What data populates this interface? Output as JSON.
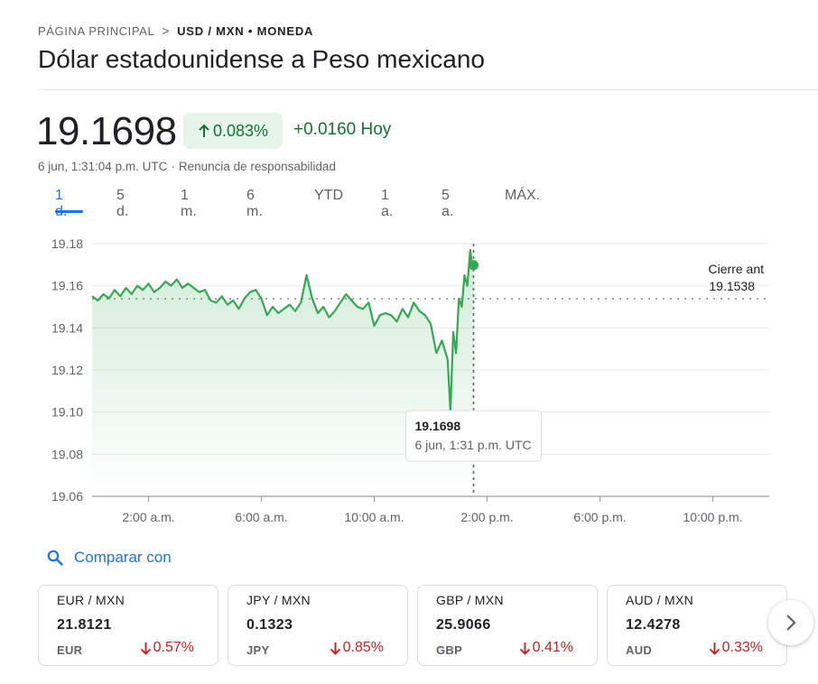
{
  "breadcrumb": {
    "home": "PÁGINA PRINCIPAL",
    "separator": ">",
    "current": "USD / MXN • MONEDA"
  },
  "title": "Dólar estadounidense a Peso mexicano",
  "quote": {
    "price": "19.1698",
    "change_pct": "0.083%",
    "change_abs": "+0.0160 Hoy",
    "timestamp": "6 jun, 1:31:04 p.m. UTC",
    "meta_separator": "·",
    "disclaimer": "Renuncia de responsabilidad"
  },
  "ranges": {
    "active": "1 d.",
    "items": [
      "1 d.",
      "5 d.",
      "1 m.",
      "6 m.",
      "YTD",
      "1 a.",
      "5 a.",
      "MÁX."
    ]
  },
  "compare_label": "Comparar con",
  "colors": {
    "up_green": "#137333",
    "line_green": "#34a853",
    "down_red": "#c5221f",
    "accent_blue": "#1a73e8",
    "chip_bg": "#e6f4ea"
  },
  "icons": {
    "breadcrumb_separator": "chevron-right-icon",
    "change_up": "arrow-up-icon",
    "compare": "search-icon",
    "change_down": "arrow-down-icon",
    "next": "chevron-right-icon"
  },
  "chart_data": {
    "type": "line",
    "y_tick_labels": [
      "19.18",
      "19.16",
      "19.14",
      "19.12",
      "19.10",
      "19.08",
      "19.06"
    ],
    "ylim": [
      19.06,
      19.18
    ],
    "x_tick_labels": [
      "2:00 a.m.",
      "6:00 a.m.",
      "10:00 a.m.",
      "2:00 p.m.",
      "6:00 p.m.",
      "10:00 p.m."
    ],
    "x_tick_hours": [
      2,
      6,
      10,
      14,
      18,
      22
    ],
    "xlim_hours": [
      0,
      24
    ],
    "grid": true,
    "previous_close": {
      "label": "Cierre ant",
      "value": "19.1538",
      "y": 19.1538
    },
    "tooltip": {
      "value": "19.1698",
      "time": "6 jun, 1:31 p.m. UTC",
      "x": 13.52
    },
    "series": [
      {
        "x": [
          0.0,
          0.2,
          0.4,
          0.6,
          0.8,
          1.0,
          1.2,
          1.4,
          1.6,
          1.8,
          2.0,
          2.2,
          2.4,
          2.6,
          2.8,
          3.0,
          3.2,
          3.4,
          3.6,
          3.8,
          4.0,
          4.2,
          4.4,
          4.6,
          4.8,
          5.0,
          5.2,
          5.4,
          5.6,
          5.8,
          6.0,
          6.2,
          6.4,
          6.6,
          6.8,
          7.0,
          7.2,
          7.4,
          7.6,
          7.8,
          8.0,
          8.2,
          8.4,
          8.6,
          8.8,
          9.0,
          9.2,
          9.4,
          9.6,
          9.8,
          10.0,
          10.2,
          10.4,
          10.6,
          10.8,
          11.0,
          11.2,
          11.4,
          11.6,
          11.8,
          12.0,
          12.2,
          12.4,
          12.6,
          12.7,
          12.8,
          12.9,
          13.0,
          13.1,
          13.2,
          13.3,
          13.4,
          13.45,
          13.52
        ],
        "values": [
          19.155,
          19.153,
          19.156,
          19.154,
          19.158,
          19.155,
          19.159,
          19.156,
          19.16,
          19.158,
          19.161,
          19.157,
          19.159,
          19.162,
          19.16,
          19.163,
          19.159,
          19.161,
          19.159,
          19.157,
          19.158,
          19.153,
          19.152,
          19.155,
          19.151,
          19.153,
          19.149,
          19.154,
          19.157,
          19.158,
          19.154,
          19.146,
          19.15,
          19.147,
          19.149,
          19.151,
          19.148,
          19.152,
          19.165,
          19.154,
          19.147,
          19.15,
          19.145,
          19.148,
          19.152,
          19.156,
          19.153,
          19.15,
          19.149,
          19.152,
          19.141,
          19.146,
          19.147,
          19.146,
          19.143,
          19.149,
          19.145,
          19.152,
          19.148,
          19.146,
          19.142,
          19.128,
          19.134,
          19.125,
          19.1,
          19.138,
          19.128,
          19.154,
          19.15,
          19.165,
          19.16,
          19.177,
          19.172,
          19.1698
        ]
      }
    ]
  },
  "cards": [
    {
      "pair": "EUR / MXN",
      "value": "21.8121",
      "currency": "EUR",
      "change": "0.57%"
    },
    {
      "pair": "JPY / MXN",
      "value": "0.1323",
      "currency": "JPY",
      "change": "0.85%"
    },
    {
      "pair": "GBP / MXN",
      "value": "25.9066",
      "currency": "GBP",
      "change": "0.41%"
    },
    {
      "pair": "AUD / MXN",
      "value": "12.4278",
      "currency": "AUD",
      "change": "0.33%"
    }
  ]
}
